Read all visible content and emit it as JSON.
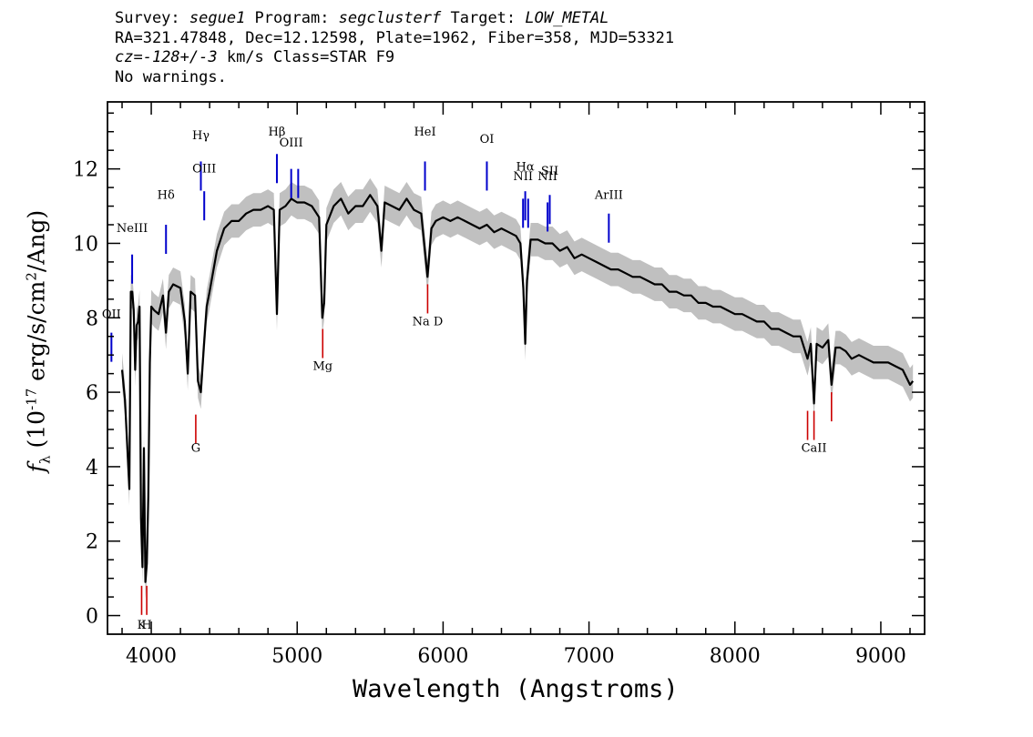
{
  "header": {
    "survey_label": "Survey: ",
    "survey": "segue1",
    "program_label": " Program: ",
    "program": "segclusterf",
    "target_label": " Target: ",
    "target": "LOW_METAL",
    "line2": "RA=321.47848, Dec=12.12598, Plate=1962, Fiber=358, MJD=53321",
    "cz": "cz=-128+/-3",
    "cz_rest": " km/s Class=STAR F9",
    "line4": "No warnings."
  },
  "colors": {
    "flux": "#000000",
    "error_band": "#c0c0c0",
    "emission": "#0000cc",
    "absorption": "#cc0000"
  },
  "chart_data": {
    "type": "line",
    "xlabel": "Wavelength (Angstroms)",
    "ylabel": "f_λ (10^-17 erg/s/cm^2/Ang)",
    "ylabel_parts": {
      "f": "f",
      "lambda": "λ",
      "pre": " (10",
      "exp": "-17",
      "mid": " erg/s/cm",
      "exp2": "2",
      "post": "/Ang)"
    },
    "xlim": [
      3700,
      9300
    ],
    "ylim": [
      -0.5,
      13.8
    ],
    "x_ticks": [
      4000,
      5000,
      6000,
      7000,
      8000,
      9000
    ],
    "x_tick_labels": [
      "4000",
      "5000",
      "6000",
      "7000",
      "8000",
      "9000"
    ],
    "y_ticks": [
      0,
      2,
      4,
      6,
      8,
      10,
      12
    ],
    "y_tick_labels": [
      "0",
      "2",
      "4",
      "6",
      "8",
      "10",
      "12"
    ],
    "series": [
      {
        "kind": "flux",
        "x": [
          3800,
          3820,
          3840,
          3850,
          3860,
          3870,
          3880,
          3890,
          3900,
          3910,
          3920,
          3930,
          3940,
          3950,
          3960,
          3970,
          3980,
          3990,
          4000,
          4020,
          4050,
          4080,
          4101,
          4120,
          4150,
          4200,
          4230,
          4250,
          4270,
          4300,
          4320,
          4340,
          4360,
          4380,
          4400,
          4450,
          4500,
          4550,
          4600,
          4650,
          4700,
          4750,
          4800,
          4840,
          4861,
          4880,
          4920,
          4960,
          5000,
          5050,
          5100,
          5150,
          5172,
          5185,
          5200,
          5250,
          5300,
          5350,
          5400,
          5450,
          5500,
          5550,
          5577,
          5600,
          5650,
          5700,
          5750,
          5800,
          5850,
          5893,
          5920,
          5950,
          6000,
          6050,
          6100,
          6150,
          6200,
          6250,
          6300,
          6350,
          6400,
          6450,
          6500,
          6530,
          6550,
          6563,
          6575,
          6600,
          6650,
          6700,
          6750,
          6800,
          6850,
          6900,
          6950,
          7000,
          7050,
          7100,
          7150,
          7200,
          7250,
          7300,
          7350,
          7400,
          7450,
          7500,
          7550,
          7600,
          7650,
          7700,
          7750,
          7800,
          7850,
          7900,
          7950,
          8000,
          8050,
          8100,
          8150,
          8200,
          8250,
          8300,
          8350,
          8400,
          8450,
          8498,
          8520,
          8542,
          8560,
          8600,
          8640,
          8662,
          8690,
          8720,
          8760,
          8800,
          8850,
          8900,
          8950,
          9000,
          9050,
          9100,
          9150,
          9200,
          9220
        ],
        "y": [
          6.6,
          5.8,
          4.2,
          3.4,
          8.7,
          8.7,
          8.2,
          6.6,
          7.8,
          7.9,
          8.3,
          2.6,
          1.3,
          4.5,
          0.9,
          1.4,
          3.2,
          6.8,
          8.3,
          8.2,
          8.1,
          8.6,
          7.6,
          8.7,
          8.9,
          8.8,
          7.9,
          6.5,
          8.7,
          8.6,
          6.3,
          6.0,
          7.2,
          8.3,
          8.7,
          9.8,
          10.4,
          10.6,
          10.6,
          10.8,
          10.9,
          10.9,
          11.0,
          10.9,
          8.1,
          10.9,
          11.0,
          11.2,
          11.1,
          11.1,
          11.0,
          10.7,
          8.0,
          8.4,
          10.5,
          11.0,
          11.2,
          10.8,
          11.0,
          11.0,
          11.3,
          11.0,
          9.8,
          11.1,
          11.0,
          10.9,
          11.2,
          10.9,
          10.8,
          9.1,
          10.4,
          10.6,
          10.7,
          10.6,
          10.7,
          10.6,
          10.5,
          10.4,
          10.5,
          10.3,
          10.4,
          10.3,
          10.2,
          10.0,
          8.8,
          7.3,
          9.0,
          10.1,
          10.1,
          10.0,
          10.0,
          9.8,
          9.9,
          9.6,
          9.7,
          9.6,
          9.5,
          9.4,
          9.3,
          9.3,
          9.2,
          9.1,
          9.1,
          9.0,
          8.9,
          8.9,
          8.7,
          8.7,
          8.6,
          8.6,
          8.4,
          8.4,
          8.3,
          8.3,
          8.2,
          8.1,
          8.1,
          8.0,
          7.9,
          7.9,
          7.7,
          7.7,
          7.6,
          7.5,
          7.5,
          6.9,
          7.3,
          5.7,
          7.3,
          7.2,
          7.4,
          6.2,
          7.2,
          7.2,
          7.1,
          6.9,
          7.0,
          6.9,
          6.8,
          6.8,
          6.8,
          6.7,
          6.6,
          6.2,
          6.3
        ]
      }
    ],
    "error_band_halfwidth": 0.45,
    "emission_lines": [
      {
        "label": "OII",
        "x": 3727,
        "y": 7.6,
        "label_y": 8.0
      },
      {
        "label": "NeIII",
        "x": 3869,
        "y": 9.7,
        "label_y": 10.3
      },
      {
        "label": "Hδ",
        "x": 4101,
        "y": 10.5,
        "label_y": 11.2
      },
      {
        "label": "Hγ",
        "x": 4340,
        "y": 12.2,
        "label_y": 12.8
      },
      {
        "label": "OIII",
        "x": 4363,
        "y": 11.4,
        "label_y": 11.9
      },
      {
        "label": "Hβ",
        "x": 4861,
        "y": 12.4,
        "label_y": 12.9
      },
      {
        "label": "OIII",
        "x": 4959,
        "y": 12.0,
        "label_y": 12.6
      },
      {
        "label": "",
        "x": 5007,
        "y": 12.0,
        "label_y": 12.6
      },
      {
        "label": "HeI",
        "x": 5876,
        "y": 12.2,
        "label_y": 12.9
      },
      {
        "label": "OI",
        "x": 6300,
        "y": 12.2,
        "label_y": 12.7
      },
      {
        "label": "NII",
        "x": 6548,
        "y": 11.2,
        "label_y": 11.7
      },
      {
        "label": "Hα",
        "x": 6563,
        "y": 11.4,
        "label_y": 11.95
      },
      {
        "label": "",
        "x": 6583,
        "y": 11.2,
        "label_y": 11.7
      },
      {
        "label": "NII",
        "x": 6716,
        "y": 11.1,
        "label_y": 11.7
      },
      {
        "label": "SII",
        "x": 6731,
        "y": 11.3,
        "label_y": 11.85
      },
      {
        "label": "ArIII",
        "x": 7136,
        "y": 10.8,
        "label_y": 11.2
      }
    ],
    "absorption_lines": [
      {
        "label": "K",
        "x": 3934,
        "y": 0.8,
        "label_y": -0.35
      },
      {
        "label": "H",
        "x": 3969,
        "y": 0.8,
        "label_y": -0.35
      },
      {
        "label": "G",
        "x": 4305,
        "y": 5.4,
        "label_y": 4.4
      },
      {
        "label": "Mg",
        "x": 5175,
        "y": 7.7,
        "label_y": 6.6
      },
      {
        "label": "Na D",
        "x": 5894,
        "y": 8.9,
        "label_y": 7.8
      },
      {
        "label": "",
        "x": 8498,
        "y": 5.5,
        "label_y": 4.4
      },
      {
        "label": "CaII",
        "x": 8542,
        "y": 5.5,
        "label_y": 4.4
      },
      {
        "label": "",
        "x": 8662,
        "y": 6.0,
        "label_y": 4.4
      }
    ]
  }
}
